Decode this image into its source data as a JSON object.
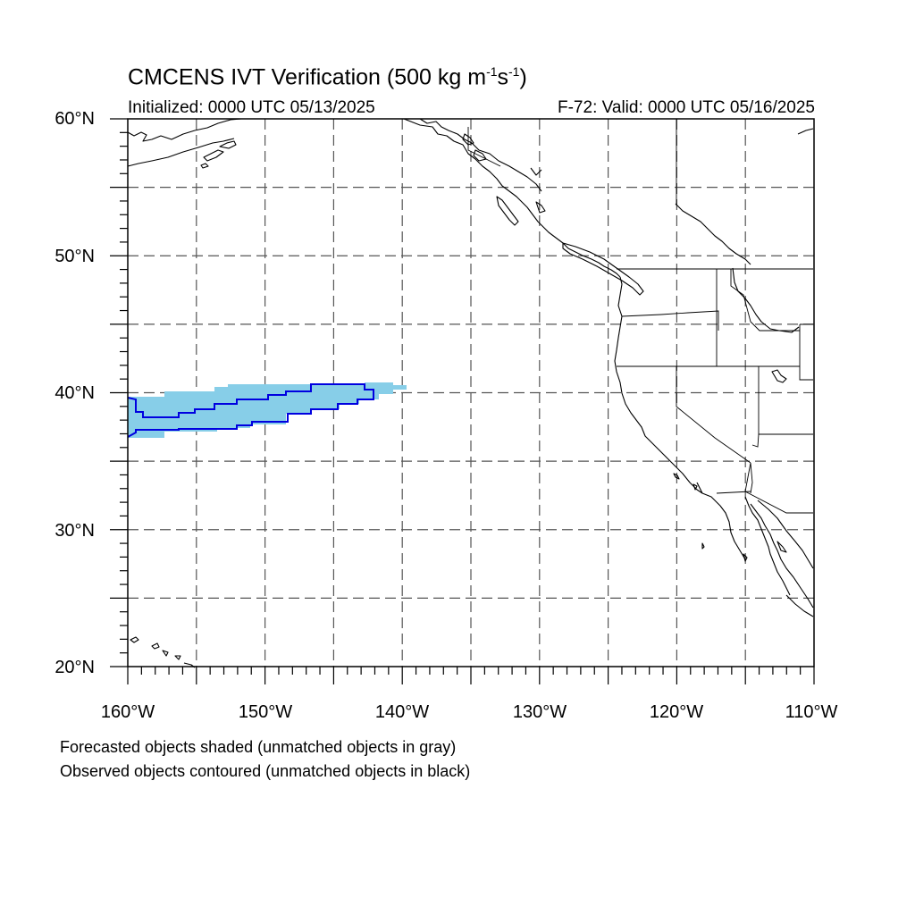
{
  "title": {
    "prefix": "CMCENS IVT Verification (500 kg m",
    "exp1": "-1",
    "mid": "s",
    "exp2": "-1",
    "suffix": ")"
  },
  "initialized": "Initialized: 0000 UTC 05/13/2025",
  "valid": "F-72: Valid: 0000 UTC 05/16/2025",
  "lat_labels": [
    "60°N",
    "50°N",
    "40°N",
    "30°N",
    "20°N"
  ],
  "lon_labels": [
    "160°W",
    "150°W",
    "140°W",
    "130°W",
    "120°W",
    "110°W"
  ],
  "notes": [
    "Forecasted objects shaded (unmatched objects in gray)",
    "Observed objects contoured (unmatched objects in black)"
  ],
  "map": {
    "lon_range": [
      -160,
      -110
    ],
    "lat_range": [
      20,
      60
    ],
    "grid_step_deg": 5,
    "gridlines": "dashed",
    "forecast_shade_color": "#87CEE8",
    "observed_contour_color": "#0000E0",
    "coast_color": "#000000"
  }
}
